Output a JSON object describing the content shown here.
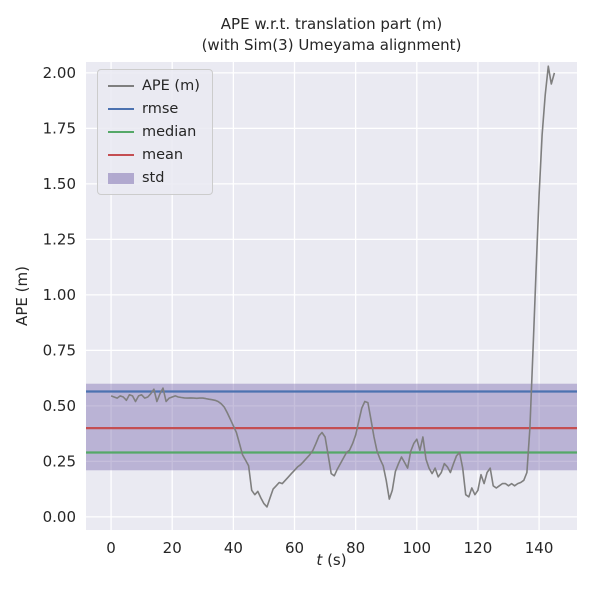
{
  "figure": {
    "xlabel_var": "t",
    "xlabel_unit": " (s)"
  },
  "legend": {
    "items": [
      {
        "label": "APE (m)",
        "type": "line",
        "color": "#7f7f7f"
      },
      {
        "label": "rmse",
        "type": "line",
        "color": "#4C72B0"
      },
      {
        "label": "median",
        "type": "line",
        "color": "#55A868"
      },
      {
        "label": "mean",
        "type": "line",
        "color": "#C44E52"
      },
      {
        "label": "std",
        "type": "patch",
        "color": "#8172B2"
      }
    ]
  },
  "chart_data": {
    "type": "line",
    "title": "APE w.r.t. translation part (m)\n(with Sim(3) Umeyama alignment)",
    "xlabel": "t (s)",
    "ylabel": "APE (m)",
    "xlim": [
      -8.2,
      152.4
    ],
    "ylim": [
      -0.059,
      2.049
    ],
    "xticks": [
      0,
      20,
      40,
      60,
      80,
      100,
      120,
      140
    ],
    "yticks": [
      0.0,
      0.25,
      0.5,
      0.75,
      1.0,
      1.25,
      1.5,
      1.75,
      2.0
    ],
    "grid": true,
    "legend_position": "upper left",
    "axes_bg": "#EAEAF2",
    "colors": {
      "ape": "#7f7f7f",
      "rmse": "#4C72B0",
      "median": "#55A868",
      "mean": "#C44E52",
      "std": "#8172B2"
    },
    "stats": {
      "rmse": 0.565,
      "median": 0.29,
      "mean": 0.4,
      "std_lower": 0.21,
      "std_upper": 0.6
    },
    "series": [
      {
        "name": "APE (m)",
        "x": [
          0,
          1,
          2,
          3,
          4,
          5,
          6,
          7,
          8,
          9,
          10,
          11,
          12,
          13,
          14,
          15,
          16,
          17,
          18,
          19,
          20,
          21,
          22,
          23,
          24,
          25,
          26,
          27,
          28,
          29,
          30,
          31,
          32,
          33,
          34,
          35,
          36,
          37,
          38,
          39,
          40,
          41,
          42,
          43,
          44,
          45,
          46,
          47,
          48,
          49,
          50,
          51,
          52,
          53,
          54,
          55,
          56,
          57,
          58,
          59,
          60,
          61,
          62,
          63,
          64,
          65,
          66,
          67,
          68,
          69,
          70,
          71,
          72,
          73,
          74,
          75,
          76,
          77,
          78,
          79,
          80,
          81,
          82,
          83,
          84,
          85,
          86,
          87,
          88,
          89,
          90,
          91,
          92,
          93,
          94,
          95,
          96,
          97,
          98,
          99,
          100,
          101,
          102,
          103,
          104,
          105,
          106,
          107,
          108,
          109,
          110,
          111,
          112,
          113,
          114,
          115,
          116,
          117,
          118,
          119,
          120,
          121,
          122,
          123,
          124,
          125,
          126,
          127,
          128,
          129,
          130,
          131,
          132,
          133,
          134,
          135,
          136,
          137,
          138,
          139,
          140,
          141,
          142,
          143,
          144,
          145
        ],
        "y": [
          0.545,
          0.54,
          0.535,
          0.545,
          0.54,
          0.525,
          0.55,
          0.545,
          0.52,
          0.545,
          0.55,
          0.535,
          0.54,
          0.555,
          0.575,
          0.52,
          0.555,
          0.58,
          0.52,
          0.535,
          0.54,
          0.545,
          0.54,
          0.538,
          0.536,
          0.535,
          0.536,
          0.535,
          0.534,
          0.535,
          0.535,
          0.533,
          0.53,
          0.528,
          0.525,
          0.52,
          0.51,
          0.495,
          0.47,
          0.44,
          0.41,
          0.38,
          0.33,
          0.28,
          0.255,
          0.23,
          0.12,
          0.1,
          0.115,
          0.085,
          0.06,
          0.045,
          0.085,
          0.125,
          0.14,
          0.155,
          0.15,
          0.165,
          0.18,
          0.195,
          0.21,
          0.225,
          0.235,
          0.25,
          0.265,
          0.28,
          0.3,
          0.33,
          0.365,
          0.38,
          0.36,
          0.28,
          0.195,
          0.185,
          0.215,
          0.24,
          0.265,
          0.29,
          0.3,
          0.33,
          0.37,
          0.43,
          0.49,
          0.52,
          0.515,
          0.44,
          0.36,
          0.295,
          0.26,
          0.23,
          0.165,
          0.08,
          0.12,
          0.205,
          0.24,
          0.27,
          0.245,
          0.22,
          0.295,
          0.33,
          0.35,
          0.3,
          0.36,
          0.26,
          0.22,
          0.195,
          0.22,
          0.18,
          0.2,
          0.24,
          0.225,
          0.2,
          0.24,
          0.275,
          0.29,
          0.22,
          0.1,
          0.09,
          0.13,
          0.1,
          0.12,
          0.19,
          0.15,
          0.2,
          0.22,
          0.14,
          0.13,
          0.14,
          0.15,
          0.15,
          0.14,
          0.15,
          0.14,
          0.15,
          0.155,
          0.165,
          0.2,
          0.4,
          0.75,
          1.1,
          1.45,
          1.72,
          1.9,
          2.03,
          1.95,
          2.0
        ]
      }
    ]
  }
}
